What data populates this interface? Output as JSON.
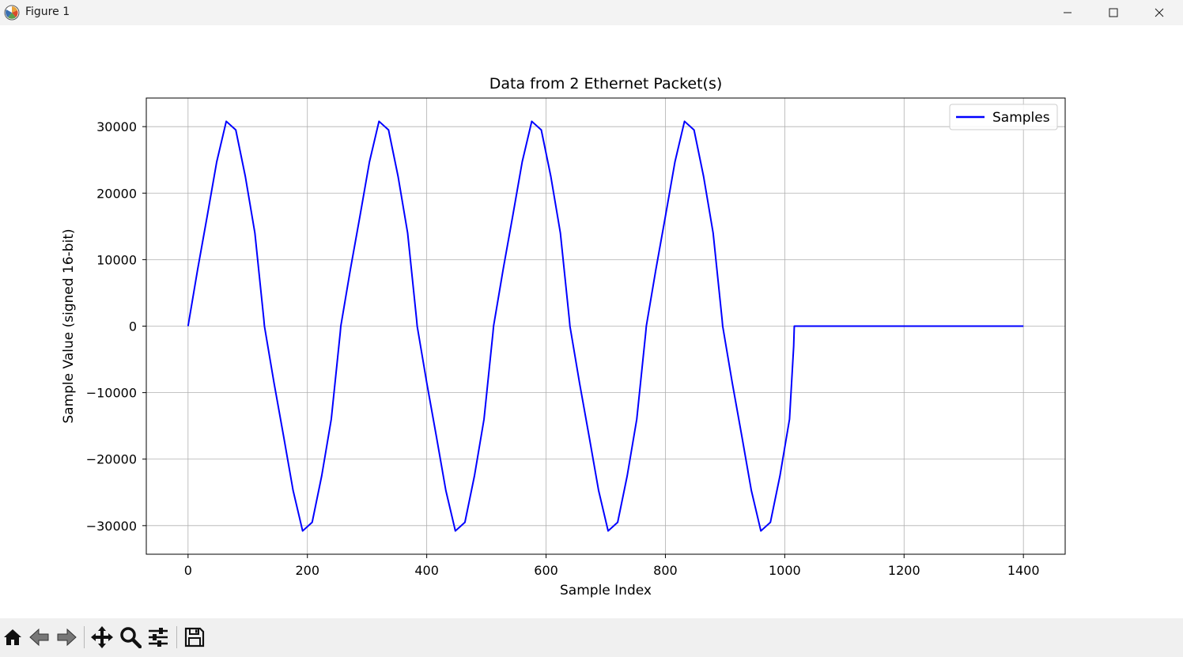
{
  "window": {
    "title": "Figure 1"
  },
  "icons": {
    "app": "matplotlib-logo-icon",
    "minimize": "minimize-icon",
    "maximize": "maximize-icon",
    "close": "close-icon",
    "home": "home-icon",
    "back": "back-arrow-icon",
    "forward": "forward-arrow-icon",
    "pan": "pan-move-icon",
    "zoom": "zoom-magnifier-icon",
    "configure": "configure-subplots-icon",
    "save": "save-floppy-icon"
  },
  "chart_data": {
    "type": "line",
    "title": "Data from 2 Ethernet Packet(s)",
    "xlabel": "Sample Index",
    "ylabel": "Sample Value (signed 16-bit)",
    "xlim": [
      -70,
      1470
    ],
    "ylim": [
      -34300,
      34300
    ],
    "xticks": [
      0,
      200,
      400,
      600,
      800,
      1000,
      1200,
      1400
    ],
    "yticks": [
      -30000,
      -20000,
      -10000,
      0,
      10000,
      20000,
      30000
    ],
    "xtick_labels": [
      "0",
      "200",
      "400",
      "600",
      "800",
      "1000",
      "1200",
      "1400"
    ],
    "ytick_labels": [
      "−30000",
      "−20000",
      "−10000",
      "0",
      "10000",
      "20000",
      "30000"
    ],
    "grid": true,
    "legend": {
      "position": "top-right",
      "entries": [
        "Samples"
      ]
    },
    "series": [
      {
        "name": "Samples",
        "color": "#0000ff",
        "x": [
          0,
          16,
          32,
          48,
          64,
          80,
          96,
          112,
          127,
          128,
          144,
          160,
          176,
          192,
          208,
          224,
          240,
          255,
          256,
          272,
          288,
          304,
          320,
          336,
          352,
          368,
          383,
          384,
          400,
          416,
          432,
          448,
          464,
          480,
          496,
          511,
          512,
          528,
          544,
          560,
          576,
          592,
          608,
          624,
          639,
          640,
          656,
          672,
          688,
          704,
          720,
          736,
          752,
          767,
          768,
          784,
          800,
          816,
          832,
          848,
          864,
          880,
          895,
          896,
          912,
          928,
          944,
          960,
          976,
          992,
          1008,
          1015,
          1016,
          1100,
          1200,
          1300,
          1400
        ],
        "y": [
          0,
          8500,
          16500,
          24700,
          30800,
          29500,
          22500,
          14000,
          1000,
          0,
          -8500,
          -16500,
          -24700,
          -30800,
          -29500,
          -22500,
          -14000,
          -1000,
          0,
          8500,
          16500,
          24700,
          30800,
          29500,
          22500,
          14000,
          1000,
          0,
          -8500,
          -16500,
          -24700,
          -30800,
          -29500,
          -22500,
          -14000,
          -1000,
          0,
          8500,
          16500,
          24700,
          30800,
          29500,
          22500,
          14000,
          1000,
          0,
          -8500,
          -16500,
          -24700,
          -30800,
          -29500,
          -22500,
          -14000,
          -1000,
          0,
          8500,
          16500,
          24700,
          30800,
          29500,
          22500,
          14000,
          1000,
          0,
          -8500,
          -16500,
          -24700,
          -30800,
          -29500,
          -22500,
          -14000,
          -3000,
          0,
          0,
          0,
          0,
          0
        ]
      }
    ]
  }
}
